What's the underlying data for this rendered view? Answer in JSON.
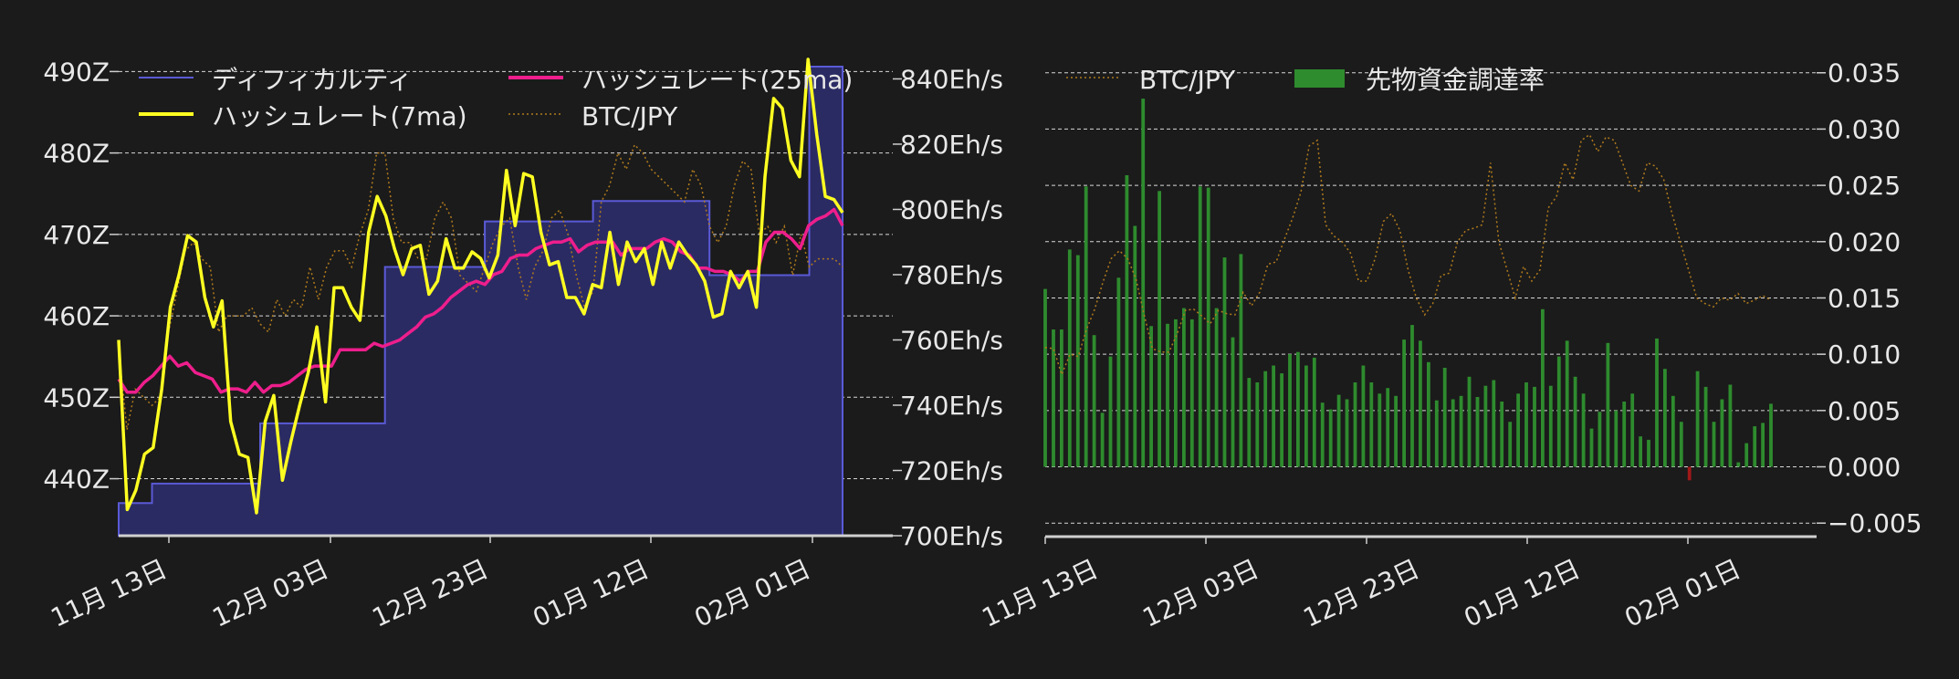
{
  "chart_data": [
    {
      "type": "line",
      "x_tick_labels": [
        "11月 13日",
        "12月 03日",
        "12月 23日",
        "01月 12日",
        "02月 01日"
      ],
      "y_left_ticks": [
        "440Z",
        "450Z",
        "460Z",
        "470Z",
        "480Z",
        "490Z"
      ],
      "y_left_range": [
        433,
        491.5
      ],
      "y_right_ticks": [
        "700Eh/s",
        "720Eh/s",
        "740Eh/s",
        "760Eh/s",
        "780Eh/s",
        "800Eh/s",
        "820Eh/s",
        "840Eh/s"
      ],
      "y_right_range": [
        700,
        846
      ],
      "legend": {
        "difficulty": "ディフィカルティ",
        "hash7": "ハッシュレート(7ma)",
        "hash25": "ハッシュレート(25ma)",
        "btc": "BTC/JPY"
      },
      "colors": {
        "difficulty": "#5a5ad6",
        "difficulty_fill": "#2b2b64",
        "hash7": "#ffff22",
        "hash25": "#ee1e8c",
        "btc": "#b07a1c"
      },
      "days": 87,
      "difficulty_steps": [
        {
          "from": 0,
          "to": 4,
          "value": 437.0
        },
        {
          "from": 4,
          "to": 17,
          "value": 439.4
        },
        {
          "from": 17,
          "to": 32,
          "value": 446.8
        },
        {
          "from": 32,
          "to": 44,
          "value": 466.0
        },
        {
          "from": 44,
          "to": 57,
          "value": 471.6
        },
        {
          "from": 57,
          "to": 71,
          "value": 474.1
        },
        {
          "from": 71,
          "to": 83,
          "value": 465.0
        },
        {
          "from": 83,
          "to": 87,
          "value": 490.6
        }
      ],
      "hashrate_7ma": [
        760,
        708,
        714,
        725,
        727,
        745,
        770,
        780,
        792,
        790,
        773,
        764,
        772,
        735,
        725,
        724,
        707,
        735,
        743,
        717,
        729,
        740,
        750,
        764,
        741,
        776,
        776,
        770,
        766,
        793,
        804,
        798,
        788,
        780,
        788,
        789,
        774,
        778,
        791,
        782,
        782,
        787,
        785,
        779,
        786,
        812,
        795,
        811,
        810,
        793,
        783,
        784,
        773,
        773,
        768,
        777,
        776,
        793,
        777,
        790,
        784,
        788,
        777,
        790,
        782,
        790,
        786,
        783,
        778,
        767,
        768,
        781,
        776,
        781,
        770,
        810,
        834,
        831,
        815,
        810,
        846,
        823,
        804,
        803,
        799
      ],
      "hashrate_25ma": [
        748,
        744,
        744,
        747,
        749,
        752,
        755,
        752,
        753,
        750,
        749,
        748,
        744,
        745,
        745,
        744,
        747,
        744,
        746,
        746,
        747,
        749,
        751,
        752,
        752,
        752,
        757,
        757,
        757,
        757,
        759,
        758,
        759,
        760,
        762,
        764,
        767,
        768,
        770,
        773,
        775,
        777,
        778,
        777,
        780,
        781,
        785,
        786,
        786,
        788,
        789,
        790,
        790,
        791,
        787,
        789,
        790,
        790,
        790,
        786,
        788,
        788,
        788,
        790,
        791,
        790,
        787,
        786,
        782,
        782,
        781,
        781,
        780,
        778,
        781,
        781,
        790,
        793,
        793,
        791,
        788,
        795,
        797,
        798,
        800,
        795
      ],
      "btc_jpy": [
        456,
        446,
        451,
        450,
        449,
        450,
        458,
        463,
        468,
        469,
        467,
        466,
        458,
        460,
        460,
        460,
        461,
        459,
        458,
        462,
        460,
        462,
        461,
        466,
        462,
        466,
        468,
        468,
        466,
        470,
        473,
        480,
        480,
        472,
        469,
        469,
        467,
        467,
        472,
        474,
        472,
        465,
        464,
        463,
        466,
        469,
        471,
        472,
        466,
        462,
        466,
        468,
        472,
        473,
        470,
        465,
        461,
        463,
        474,
        476,
        480,
        478,
        481,
        480,
        478,
        477,
        476,
        475,
        474,
        478,
        476,
        471,
        469,
        471,
        476,
        479,
        478,
        470,
        471,
        469,
        471,
        465,
        470,
        466,
        467,
        467,
        467,
        466
      ],
      "note": ""
    },
    {
      "type": "bar",
      "x_tick_labels": [
        "11月 13日",
        "12月 03日",
        "12月 23日",
        "01月 12日",
        "02月 01日"
      ],
      "y_right_ticks": [
        "−0.005",
        "0.000",
        "0.005",
        "0.010",
        "0.015",
        "0.020",
        "0.025",
        "0.030",
        "0.035"
      ],
      "y_range": [
        -0.0062,
        0.0366
      ],
      "legend": {
        "btc": "BTC/JPY",
        "funding": "先物資金調達率"
      },
      "colors": {
        "bar_pos": "#2e8b2e",
        "bar_neg": "#a01818",
        "btc": "#b07a1c"
      },
      "funding_rate": [
        0.0158,
        0.0122,
        0.0122,
        0.0193,
        0.0188,
        0.0249,
        0.0117,
        0.0048,
        0.0098,
        0.0168,
        0.0259,
        0.0214,
        0.0327,
        0.0125,
        0.0245,
        0.0127,
        0.0131,
        0.0141,
        0.0131,
        0.0249,
        0.0248,
        0.0141,
        0.0186,
        0.0115,
        0.0189,
        0.0079,
        0.0075,
        0.0085,
        0.009,
        0.0083,
        0.01,
        0.0102,
        0.009,
        0.0097,
        0.0057,
        0.0051,
        0.0064,
        0.006,
        0.0075,
        0.009,
        0.0075,
        0.0065,
        0.007,
        0.0063,
        0.0113,
        0.0126,
        0.0112,
        0.0093,
        0.0059,
        0.0088,
        0.006,
        0.0063,
        0.008,
        0.0062,
        0.0072,
        0.0077,
        0.0058,
        0.004,
        0.0065,
        0.0075,
        0.0071,
        0.014,
        0.0072,
        0.0098,
        0.0112,
        0.008,
        0.0065,
        0.0034,
        0.0049,
        0.011,
        0.005,
        0.0058,
        0.0065,
        0.0027,
        0.0024,
        0.0114,
        0.0087,
        0.0063,
        0.004,
        -0.0012,
        0.0085,
        0.0071,
        0.004,
        0.006,
        0.0073,
        0.0004,
        0.0021,
        0.0036,
        0.0039,
        0.0056
      ],
      "btc_jpy": [
        0.0106,
        0.0105,
        0.0082,
        0.01,
        0.0098,
        0.0122,
        0.014,
        0.0164,
        0.0185,
        0.0192,
        0.0185,
        0.0167,
        0.0135,
        0.0105,
        0.0102,
        0.0102,
        0.0118,
        0.0139,
        0.014,
        0.0134,
        0.0127,
        0.0139,
        0.0136,
        0.0135,
        0.0155,
        0.0143,
        0.0155,
        0.018,
        0.0182,
        0.0202,
        0.0221,
        0.0244,
        0.0285,
        0.029,
        0.0215,
        0.0205,
        0.02,
        0.019,
        0.0165,
        0.0165,
        0.0185,
        0.0218,
        0.0225,
        0.021,
        0.0175,
        0.015,
        0.0135,
        0.0145,
        0.017,
        0.0172,
        0.02,
        0.021,
        0.0212,
        0.0215,
        0.027,
        0.02,
        0.0175,
        0.015,
        0.0178,
        0.0165,
        0.0175,
        0.023,
        0.024,
        0.027,
        0.0255,
        0.029,
        0.0295,
        0.028,
        0.0293,
        0.029,
        0.027,
        0.025,
        0.0245,
        0.027,
        0.0267,
        0.0255,
        0.0225,
        0.02,
        0.0175,
        0.015,
        0.0145,
        0.0142,
        0.015,
        0.0148,
        0.0154,
        0.0145,
        0.0148,
        0.0152,
        0.0148
      ]
    }
  ]
}
